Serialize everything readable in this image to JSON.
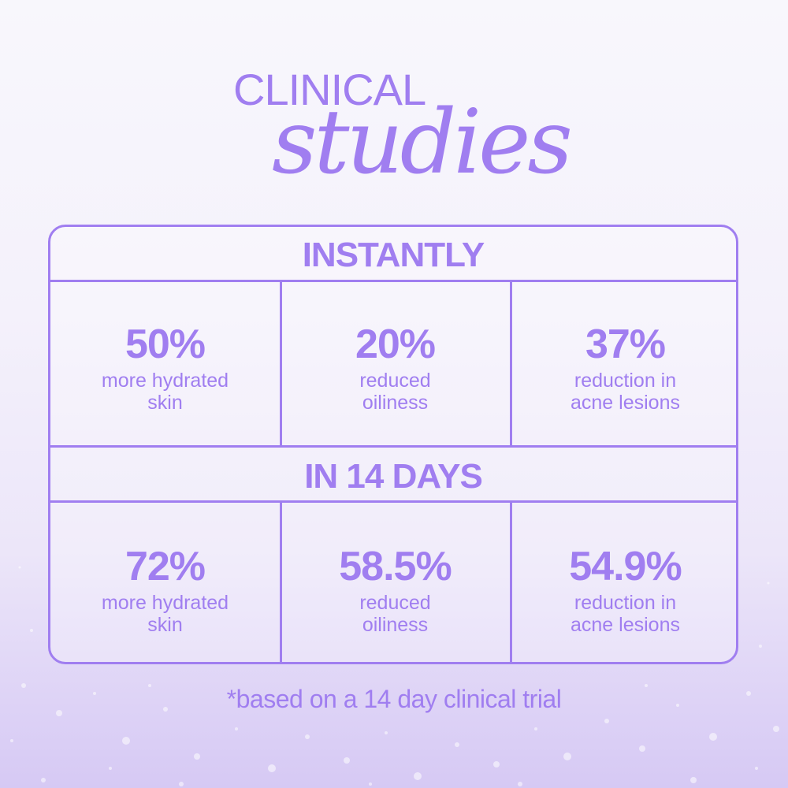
{
  "title": {
    "line1": "CLINICAL",
    "line2": "studies"
  },
  "accent_color": "#a07ef0",
  "sections": [
    {
      "heading": "INSTANTLY",
      "stats": [
        {
          "value": "50%",
          "description": "more hydrated\nskin"
        },
        {
          "value": "20%",
          "description": "reduced\noiliness"
        },
        {
          "value": "37%",
          "description": "reduction in\nacne lesions"
        }
      ]
    },
    {
      "heading": "IN 14 DAYS",
      "stats": [
        {
          "value": "72%",
          "description": "more hydrated\nskin"
        },
        {
          "value": "58.5%",
          "description": "reduced\noiliness"
        },
        {
          "value": "54.9%",
          "description": "reduction in\nacne lesions"
        }
      ]
    }
  ],
  "footnote": "*based on a 14 day clinical trial"
}
